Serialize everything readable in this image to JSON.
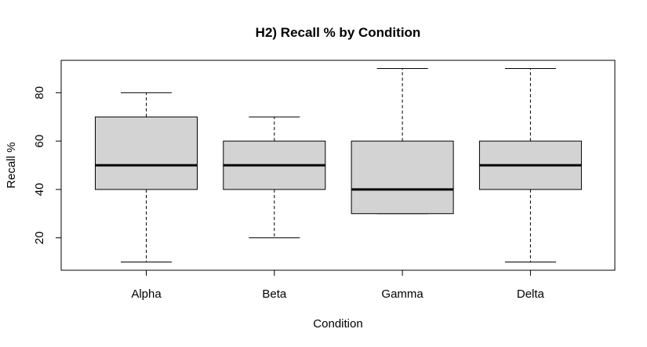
{
  "chart_data": {
    "type": "box",
    "title": "H2) Recall % by Condition",
    "xlabel": "Condition",
    "ylabel": "Recall %",
    "ylim": [
      6.6,
      93.4
    ],
    "yticks": [
      20,
      40,
      60,
      80
    ],
    "categories": [
      "Alpha",
      "Beta",
      "Gamma",
      "Delta"
    ],
    "boxes": [
      {
        "min": 10,
        "q1": 40,
        "median": 50,
        "q3": 70,
        "max": 80
      },
      {
        "min": 20,
        "q1": 40,
        "median": 50,
        "q3": 60,
        "max": 70
      },
      {
        "min": 30,
        "q1": 30,
        "median": 40,
        "q3": 60,
        "max": 90
      },
      {
        "min": 10,
        "q1": 40,
        "median": 50,
        "q3": 60,
        "max": 90
      }
    ],
    "box_fill": "#d3d3d3",
    "grid": false
  }
}
